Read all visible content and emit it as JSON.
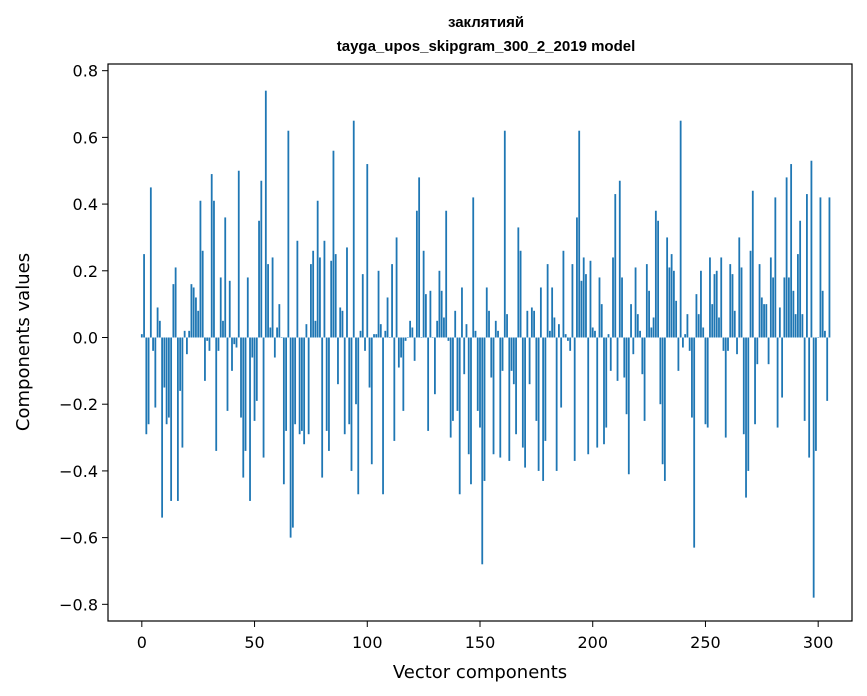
{
  "chart_data": {
    "type": "bar",
    "title": "заклятияй",
    "subtitle": "tayga_upos_skipgram_300_2_2019 model",
    "xlabel": "Vector components",
    "ylabel": "Components values",
    "xlim": [
      -15,
      315
    ],
    "ylim": [
      -0.85,
      0.82
    ],
    "x_ticks": [
      0,
      50,
      100,
      150,
      200,
      250,
      300
    ],
    "y_ticks": [
      -0.8,
      -0.6,
      -0.4,
      -0.2,
      0.0,
      0.2,
      0.4,
      0.6,
      0.8
    ],
    "x_tick_labels": [
      "0",
      "50",
      "100",
      "150",
      "200",
      "250",
      "300"
    ],
    "y_tick_labels": [
      "−0.8",
      "−0.6",
      "−0.4",
      "−0.2",
      "0.0",
      "0.2",
      "0.4",
      "0.6",
      "0.8"
    ],
    "bar_color": "#1f77b4",
    "grid": false,
    "values": [
      0.01,
      0.25,
      -0.29,
      -0.26,
      0.45,
      -0.04,
      -0.21,
      0.09,
      0.05,
      -0.54,
      -0.15,
      -0.26,
      -0.24,
      -0.49,
      0.16,
      0.21,
      -0.49,
      -0.16,
      -0.33,
      0.02,
      -0.05,
      0.02,
      0.16,
      0.15,
      0.12,
      0.08,
      0.41,
      0.26,
      -0.13,
      -0.01,
      -0.04,
      0.49,
      0.41,
      -0.34,
      -0.04,
      0.18,
      0.05,
      0.36,
      -0.22,
      0.17,
      -0.1,
      -0.02,
      -0.03,
      0.5,
      -0.24,
      -0.42,
      -0.34,
      0.18,
      -0.49,
      -0.06,
      -0.25,
      -0.19,
      0.35,
      0.47,
      -0.36,
      0.74,
      0.22,
      0.03,
      0.24,
      -0.06,
      0.03,
      0.1,
      0.0,
      -0.44,
      -0.28,
      0.62,
      -0.6,
      -0.57,
      -0.26,
      0.29,
      -0.29,
      -0.28,
      -0.32,
      0.04,
      -0.29,
      0.22,
      0.26,
      0.05,
      0.41,
      0.24,
      -0.42,
      0.29,
      -0.28,
      -0.34,
      0.23,
      0.56,
      0.25,
      -0.14,
      0.09,
      0.08,
      -0.29,
      0.27,
      -0.26,
      -0.4,
      0.65,
      -0.2,
      -0.47,
      0.02,
      0.19,
      -0.04,
      0.52,
      -0.15,
      -0.38,
      0.01,
      0.01,
      0.2,
      0.04,
      -0.47,
      0.02,
      0.12,
      0.0,
      0.22,
      -0.31,
      0.3,
      -0.09,
      -0.06,
      -0.22,
      -0.01,
      0.0,
      0.05,
      0.03,
      -0.07,
      0.38,
      0.48,
      0.0,
      0.26,
      0.13,
      -0.28,
      0.14,
      0.0,
      -0.17,
      0.05,
      0.2,
      0.14,
      0.06,
      0.38,
      -0.01,
      -0.3,
      -0.25,
      0.08,
      -0.22,
      -0.47,
      0.15,
      -0.11,
      0.04,
      -0.35,
      -0.44,
      0.42,
      0.02,
      -0.22,
      -0.27,
      -0.68,
      -0.43,
      0.15,
      0.08,
      -0.12,
      -0.35,
      0.05,
      0.02,
      -0.36,
      -0.1,
      0.62,
      0.07,
      -0.37,
      -0.1,
      -0.14,
      -0.29,
      0.33,
      0.26,
      -0.33,
      -0.39,
      0.08,
      -0.14,
      0.09,
      0.08,
      -0.25,
      -0.4,
      0.15,
      -0.43,
      -0.31,
      0.22,
      0.02,
      0.15,
      0.06,
      -0.4,
      0.04,
      -0.21,
      0.26,
      0.01,
      -0.01,
      -0.04,
      0.22,
      -0.37,
      0.36,
      0.62,
      0.17,
      0.24,
      0.19,
      -0.35,
      0.23,
      0.03,
      0.02,
      -0.33,
      0.18,
      0.1,
      -0.32,
      -0.27,
      0.01,
      -0.1,
      0.24,
      0.43,
      -0.13,
      0.47,
      0.18,
      -0.12,
      -0.23,
      -0.41,
      0.1,
      -0.05,
      0.21,
      0.07,
      0.02,
      -0.11,
      -0.25,
      0.22,
      0.14,
      0.03,
      0.06,
      0.38,
      0.35,
      -0.2,
      -0.38,
      -0.43,
      0.3,
      0.21,
      0.25,
      0.2,
      0.11,
      -0.1,
      0.65,
      -0.03,
      0.01,
      0.07,
      -0.04,
      -0.24,
      -0.63,
      0.13,
      0.07,
      0.2,
      0.03,
      -0.26,
      -0.27,
      0.24,
      0.1,
      0.19,
      0.2,
      0.06,
      0.24,
      -0.04,
      -0.3,
      -0.04,
      0.22,
      0.19,
      0.08,
      -0.05,
      0.3,
      0.21,
      -0.29,
      -0.48,
      -0.4,
      0.26,
      0.44,
      -0.26,
      -0.08,
      0.22,
      0.12,
      0.1,
      0.1,
      -0.08,
      0.24,
      0.18,
      0.42,
      -0.27,
      0.09,
      -0.18,
      0.18,
      0.48,
      0.18,
      0.52,
      0.14,
      0.07,
      0.25,
      0.35,
      0.07,
      -0.25,
      0.43,
      -0.36,
      0.53,
      -0.78,
      -0.34,
      0.0,
      0.42,
      0.14,
      0.02,
      -0.19,
      0.42
    ]
  }
}
